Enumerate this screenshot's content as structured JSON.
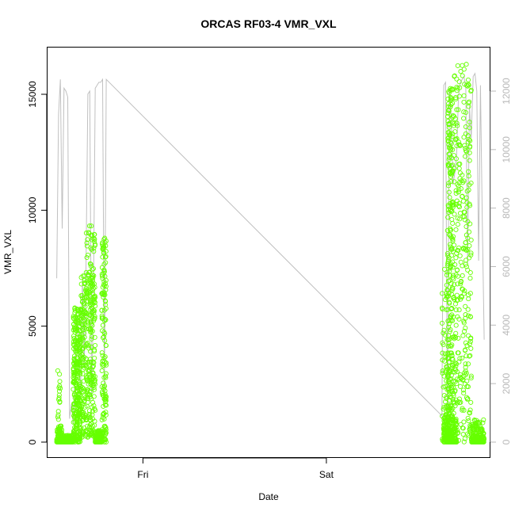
{
  "chart_data": {
    "type": "scatter",
    "title": "ORCAS RF03-4 VMR_VXL",
    "xlabel": "Date",
    "ylabel": "VMR_VXL",
    "x_ticks": [
      "Fri",
      "Sat"
    ],
    "x_tick_days": [
      1.0,
      2.0
    ],
    "xlim_days": [
      0.48,
      2.89
    ],
    "ylim_left": [
      0,
      16500
    ],
    "y_ticks_left": [
      0,
      5000,
      10000,
      15000
    ],
    "ylim_right": [
      0,
      12800
    ],
    "y_ticks_right": [
      0,
      2000,
      4000,
      6000,
      8000,
      10000,
      12000
    ],
    "grid": false,
    "colors": {
      "points": "#66ff00",
      "line": "#c0c0c0",
      "axis": "#000000",
      "right_axis": "#b8b8b8"
    },
    "series": [
      {
        "kind": "points",
        "axis": "left",
        "bursts": [
          {
            "x": [
              0.53,
              0.56
            ],
            "min": 0,
            "max": 700,
            "n": 140,
            "bias": 4
          },
          {
            "x": [
              0.535,
              0.55
            ],
            "min": 700,
            "max": 3100,
            "n": 16,
            "bias": 1
          },
          {
            "x": [
              0.56,
              0.62
            ],
            "min": 0,
            "max": 300,
            "n": 140,
            "bias": 3
          },
          {
            "x": [
              0.62,
              0.66
            ],
            "min": 0,
            "max": 6000,
            "n": 300,
            "bias": 1.3
          },
          {
            "x": [
              0.66,
              0.74
            ],
            "min": 200,
            "max": 7200,
            "n": 300,
            "bias": 1
          },
          {
            "x": [
              0.69,
              0.74
            ],
            "min": 5000,
            "max": 9600,
            "n": 60,
            "bias": 1
          },
          {
            "x": [
              0.74,
              0.775
            ],
            "min": 0,
            "max": 500,
            "n": 120,
            "bias": 3
          },
          {
            "x": [
              0.775,
              0.8
            ],
            "min": 0,
            "max": 8800,
            "n": 150,
            "bias": 1.4
          },
          {
            "x": [
              2.63,
              2.66
            ],
            "min": 0,
            "max": 7800,
            "n": 80,
            "bias": 2
          },
          {
            "x": [
              2.64,
              2.71
            ],
            "min": 0,
            "max": 1200,
            "n": 220,
            "bias": 3
          },
          {
            "x": [
              2.66,
              2.69
            ],
            "min": 0,
            "max": 15300,
            "n": 260,
            "bias": 1.3
          },
          {
            "x": [
              2.69,
              2.79
            ],
            "min": 0,
            "max": 16300,
            "n": 320,
            "bias": 1.1
          },
          {
            "x": [
              2.79,
              2.86
            ],
            "min": 0,
            "max": 1000,
            "n": 180,
            "bias": 3
          }
        ]
      },
      {
        "kind": "line",
        "axis": "right",
        "x": [
          0.53,
          0.54,
          0.55,
          0.56,
          0.57,
          0.58,
          0.59,
          0.6,
          0.61,
          0.62,
          0.63,
          0.64,
          0.65,
          0.66,
          0.67,
          0.68,
          0.69,
          0.7,
          0.71,
          0.72,
          0.73,
          0.74,
          0.75,
          0.76,
          0.77,
          0.78,
          0.79,
          0.8,
          2.63,
          2.64,
          2.65,
          2.66,
          2.67,
          2.68,
          2.69,
          2.7,
          2.71,
          2.72,
          2.73,
          2.74,
          2.75,
          2.76,
          2.77,
          2.78,
          2.79,
          2.8,
          2.81,
          2.82,
          2.83,
          2.84,
          2.85,
          2.86
        ],
        "y": [
          5600,
          11200,
          12400,
          7300,
          12100,
          12000,
          11800,
          800,
          1300,
          600,
          2300,
          4300,
          3200,
          1600,
          5600,
          2600,
          6100,
          11900,
          12000,
          1500,
          4800,
          12100,
          12200,
          12300,
          12300,
          12400,
          1700,
          12400,
          900,
          12200,
          12300,
          300,
          12100,
          11200,
          8800,
          9200,
          9800,
          11800,
          12300,
          12400,
          12500,
          12100,
          6100,
          11500,
          10400,
          12500,
          12600,
          12000,
          6200,
          12200,
          7600,
          3500
        ]
      }
    ]
  }
}
